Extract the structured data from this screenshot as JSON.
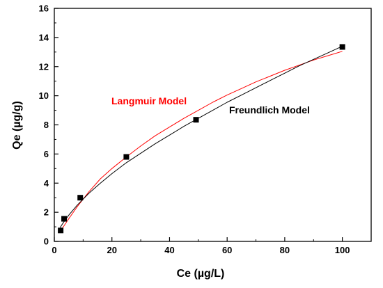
{
  "chart_data": {
    "type": "scatter",
    "xlabel": "Ce (µg/L)",
    "ylabel": "Qe (µg/g)",
    "xlim": [
      0,
      110
    ],
    "ylim": [
      0,
      16
    ],
    "x_ticks": [
      0,
      20,
      40,
      60,
      80,
      100
    ],
    "y_ticks": [
      0,
      2,
      4,
      6,
      8,
      10,
      12,
      14,
      16
    ],
    "grid": false,
    "legend": "none",
    "points": {
      "x": [
        2.2,
        3.4,
        9.0,
        25.0,
        49.2,
        100.0
      ],
      "y": [
        0.75,
        1.55,
        3.0,
        5.8,
        8.35,
        13.35
      ],
      "marker": "square",
      "color": "#000000"
    },
    "series": [
      {
        "name": "Langmuir Model",
        "color": "#ff0000",
        "x": [
          2.0,
          3.0,
          5.0,
          8.0,
          12.0,
          16.0,
          20.0,
          25.0,
          30.0,
          35.0,
          40.0,
          45.0,
          50.0,
          55.0,
          60.0,
          65.0,
          70.0,
          75.0,
          80.0,
          85.0,
          90.0,
          95.0,
          100.0
        ],
        "y": [
          0.65,
          0.96,
          1.55,
          2.4,
          3.4,
          4.3,
          5.0,
          5.8,
          6.55,
          7.25,
          7.85,
          8.45,
          9.0,
          9.55,
          10.05,
          10.5,
          10.95,
          11.35,
          11.75,
          12.1,
          12.45,
          12.75,
          13.05
        ]
      },
      {
        "name": "Freundlich Model",
        "color": "#000000",
        "x": [
          2.0,
          3.0,
          5.0,
          8.0,
          12.0,
          16.0,
          20.0,
          25.0,
          30.0,
          35.0,
          40.0,
          45.0,
          50.0,
          55.0,
          60.0,
          65.0,
          70.0,
          75.0,
          80.0,
          85.0,
          90.0,
          95.0,
          100.0
        ],
        "y": [
          0.95,
          1.25,
          1.8,
          2.5,
          3.3,
          4.0,
          4.65,
          5.4,
          6.05,
          6.7,
          7.3,
          7.9,
          8.45,
          9.0,
          9.55,
          10.05,
          10.55,
          11.05,
          11.55,
          12.05,
          12.5,
          12.95,
          13.4
        ]
      }
    ],
    "annotations": [
      {
        "text": "Langmuir Model",
        "color": "#ff0000"
      },
      {
        "text": "Freundlich Model",
        "color": "#000000"
      }
    ]
  }
}
